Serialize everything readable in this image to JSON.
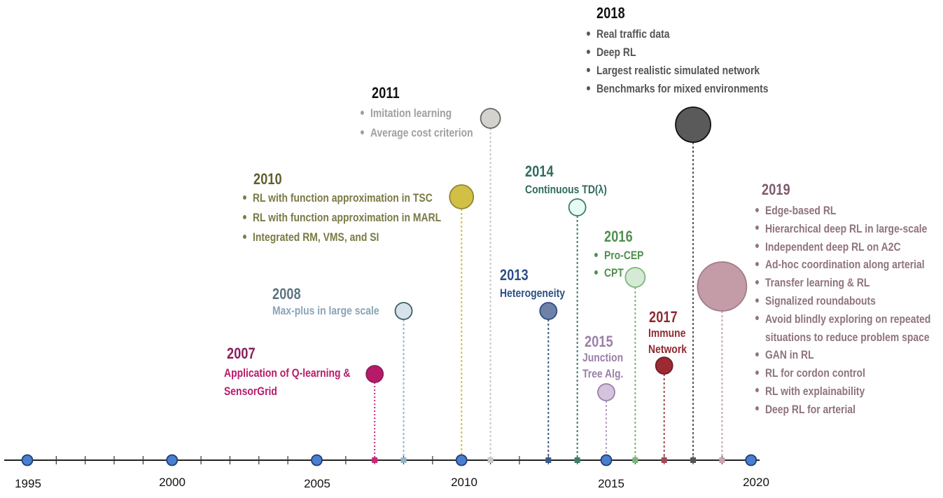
{
  "axis": {
    "start": 1995,
    "end": 2020,
    "labels": [
      "1995",
      "2000",
      "2005",
      "2010",
      "2015",
      "2020"
    ]
  },
  "milestones": [
    {
      "id": "2007",
      "year": "2007",
      "color": "#b81a6a",
      "line_color": "#c52a76",
      "bubble_size": "small",
      "items": [
        "Application of Q-learning &",
        "SensorGrid"
      ],
      "bulleted": false
    },
    {
      "id": "2008",
      "year": "2008",
      "color": "#5a7482",
      "text_color": "#8aa4b6",
      "line_color": "#93b5c8",
      "bubble_size": "small",
      "items": [
        "Max-plus in large scale"
      ],
      "bulleted": false
    },
    {
      "id": "2010",
      "year": "2010",
      "color": "#6b6a33",
      "text_color": "#7a7a45",
      "line_color": "#d3c23a",
      "bubble_size": "medium",
      "items": [
        "RL with function approximation in TSC",
        "RL with function approximation in MARL",
        "Integrated RM, VMS, and SI"
      ],
      "bulleted": true
    },
    {
      "id": "2011",
      "year": "2011",
      "color": "#111111",
      "text_color": "#a0a0a0",
      "line_color": "#c8c8c8",
      "bubble_size": "small",
      "items": [
        "Imitation learning",
        "Average cost criterion"
      ],
      "bulleted": true
    },
    {
      "id": "2013",
      "year": "2013",
      "color": "#2d4f86",
      "line_color": "#3b5a8c",
      "bubble_size": "small",
      "items": [
        "Heterogeneity"
      ],
      "bulleted": false
    },
    {
      "id": "2014",
      "year": "2014",
      "color": "#2f6b5e",
      "line_color": "#3e7b6b",
      "bubble_size": "small",
      "items": [
        "Continuous TD(λ)"
      ],
      "bulleted": false
    },
    {
      "id": "2015",
      "year": "2015",
      "color": "#9a7fa8",
      "line_color": "#b79fc4",
      "bubble_size": "small",
      "items": [
        "Junction",
        "Tree Alg."
      ],
      "bulleted": false
    },
    {
      "id": "2016",
      "year": "2016",
      "color": "#4f8f4f",
      "line_color": "#7cb57c",
      "bubble_size": "small",
      "items": [
        "Pro-CEP",
        "CPT"
      ],
      "bulleted": true
    },
    {
      "id": "2017",
      "year": "2017",
      "color": "#8f2a33",
      "line_color": "#a44a52",
      "bubble_size": "small",
      "items": [
        "Immune",
        "Network"
      ],
      "bulleted": false
    },
    {
      "id": "2018",
      "year": "2018",
      "color": "#111111",
      "text_color": "#555555",
      "line_color": "#555555",
      "bubble_size": "large",
      "items": [
        "Real traffic data",
        "Deep RL",
        "Largest realistic simulated network",
        "Benchmarks for mixed environments"
      ],
      "bulleted": true
    },
    {
      "id": "2019",
      "year": "2019",
      "color": "#7d5a6e",
      "text_color": "#8f7380",
      "line_color": "#c9a3ae",
      "bubble_size": "xlarge",
      "items": [
        "Edge-based RL",
        "Hierarchical deep RL in large-scale",
        "Independent deep RL on A2C",
        "Ad-hoc coordination along arterial",
        "Transfer learning & RL",
        "Signalized roundabouts",
        "Avoid blindly exploring on repeated",
        "situations to reduce problem space",
        "GAN in RL",
        "RL for cordon control",
        "RL with explainability",
        "Deep RL for arterial"
      ],
      "bulleted": true,
      "continuation_index": 7
    }
  ]
}
